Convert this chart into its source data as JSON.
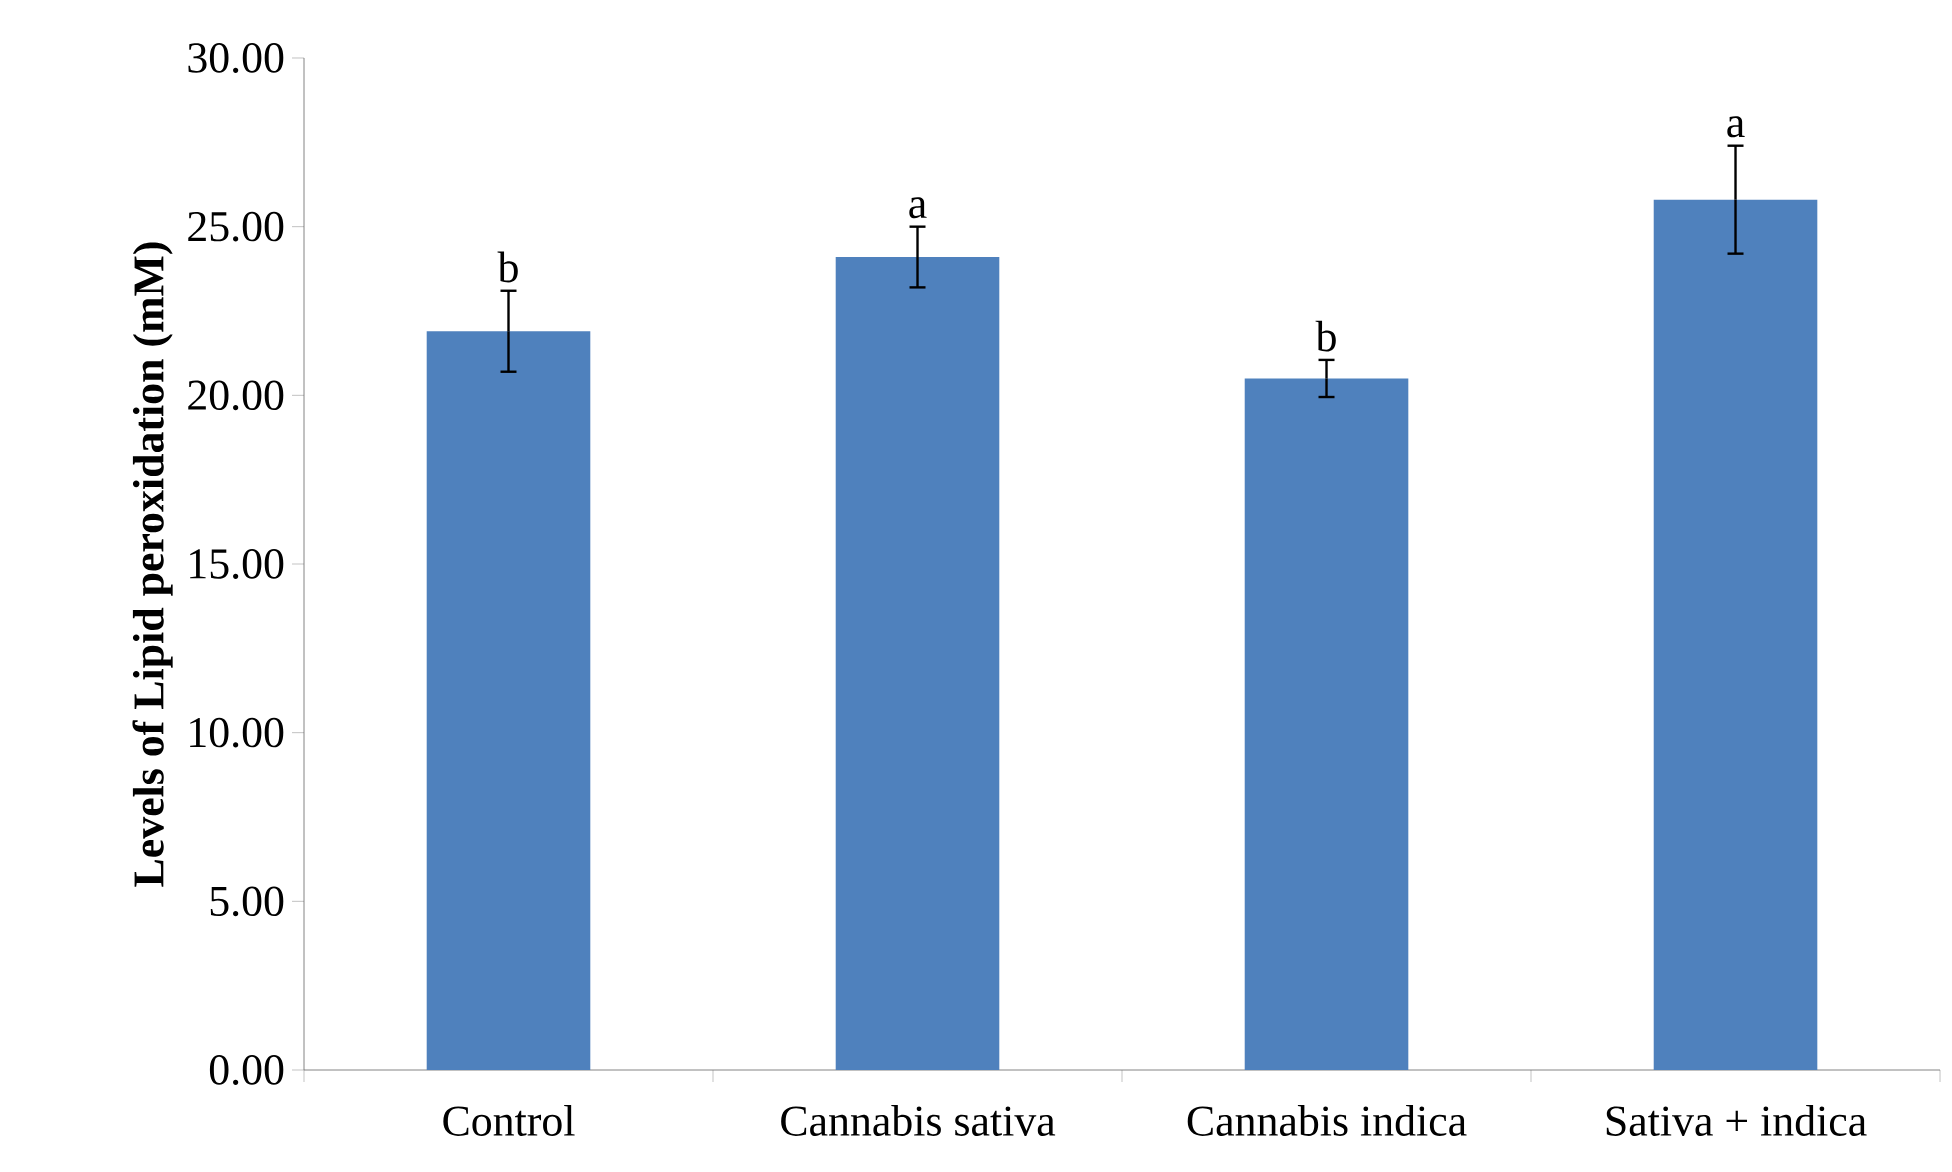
{
  "chart_data": {
    "type": "bar",
    "ylabel": "Levels of Lipid peroxidation (mM)",
    "categories": [
      "Control",
      "Cannabis sativa",
      "Cannabis indica",
      "Sativa + indica"
    ],
    "values": [
      21.9,
      24.1,
      20.5,
      25.8
    ],
    "errors": [
      1.2,
      0.9,
      0.55,
      1.6
    ],
    "color": "#4f81bd",
    "ylim": [
      0,
      30
    ],
    "yticks": [
      {
        "value": 0,
        "label": "0.00"
      },
      {
        "value": 5,
        "label": "5.00"
      },
      {
        "value": 10,
        "label": "10.00"
      },
      {
        "value": 15,
        "label": "15.00"
      },
      {
        "value": 20,
        "label": "20.00"
      },
      {
        "value": 25,
        "label": "25.00"
      },
      {
        "value": 30,
        "label": "30.00"
      }
    ],
    "annotations": [
      "b",
      "a",
      "b",
      "a"
    ]
  }
}
